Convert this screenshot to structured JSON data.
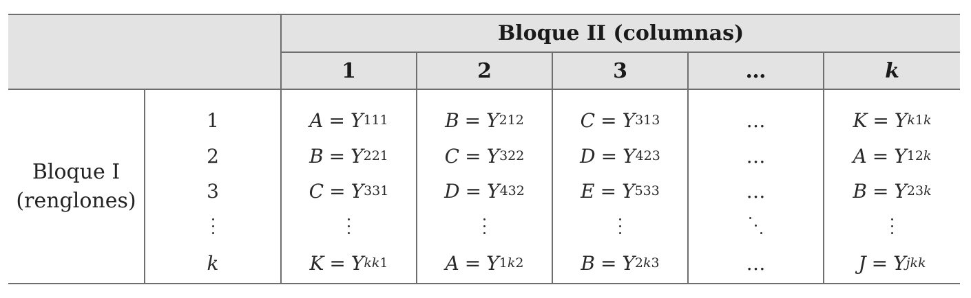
{
  "header": {
    "group_title": "Bloque II (columnas)",
    "columns": [
      "1",
      "2",
      "3",
      "…",
      "k"
    ]
  },
  "row_group": {
    "label_line1": "Bloque I",
    "label_line2": "(renglones)"
  },
  "rows": [
    {
      "label": "1",
      "cells": [
        {
          "letter": "A",
          "var": "Y",
          "sub": "111"
        },
        {
          "letter": "B",
          "var": "Y",
          "sub": "212"
        },
        {
          "letter": "C",
          "var": "Y",
          "sub": "313"
        },
        {
          "text": "…"
        },
        {
          "letter": "K",
          "var": "Y",
          "sub": "k1k"
        }
      ]
    },
    {
      "label": "2",
      "cells": [
        {
          "letter": "B",
          "var": "Y",
          "sub": "221"
        },
        {
          "letter": "C",
          "var": "Y",
          "sub": "322"
        },
        {
          "letter": "D",
          "var": "Y",
          "sub": "423"
        },
        {
          "text": "…"
        },
        {
          "letter": "A",
          "var": "Y",
          "sub": "12k"
        }
      ]
    },
    {
      "label": "3",
      "cells": [
        {
          "letter": "C",
          "var": "Y",
          "sub": "331"
        },
        {
          "letter": "D",
          "var": "Y",
          "sub": "432"
        },
        {
          "letter": "E",
          "var": "Y",
          "sub": "533"
        },
        {
          "text": "…"
        },
        {
          "letter": "B",
          "var": "Y",
          "sub": "23k"
        }
      ]
    },
    {
      "label": "⋮",
      "cells": [
        {
          "dots": "vertical"
        },
        {
          "dots": "vertical"
        },
        {
          "dots": "vertical"
        },
        {
          "dots": "diagonal"
        },
        {
          "dots": "vertical"
        }
      ]
    },
    {
      "label": "k",
      "cells": [
        {
          "letter": "K",
          "var": "Y",
          "sub": "kk1"
        },
        {
          "letter": "A",
          "var": "Y",
          "sub": "1k2"
        },
        {
          "letter": "B",
          "var": "Y",
          "sub": "2k3"
        },
        {
          "text": "…"
        },
        {
          "letter": "J",
          "var": "Y",
          "sub": "jkk"
        }
      ]
    }
  ],
  "colors": {
    "header_fill": "#e3e3e3",
    "rule": "#6e6e6e"
  }
}
